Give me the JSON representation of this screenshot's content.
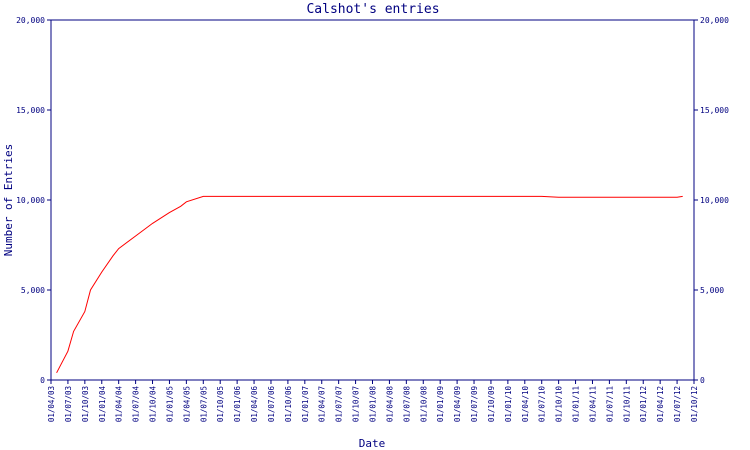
{
  "chart_data": {
    "type": "line",
    "title": "Calshot's entries",
    "xlabel": "Date",
    "ylabel": "Number of Entries",
    "ylim": [
      0,
      20000
    ],
    "y_ticks": [
      "0",
      "5,000",
      "10,000",
      "15,000",
      "20,000"
    ],
    "y_tick_values": [
      0,
      5000,
      10000,
      15000,
      20000
    ],
    "x_ticks": [
      "01/04/03",
      "01/07/03",
      "01/10/03",
      "01/01/04",
      "01/04/04",
      "01/07/04",
      "01/10/04",
      "01/01/05",
      "01/04/05",
      "01/07/05",
      "01/10/05",
      "01/01/06",
      "01/04/06",
      "01/07/06",
      "01/10/06",
      "01/01/07",
      "01/04/07",
      "01/07/07",
      "01/10/07",
      "01/01/08",
      "01/04/08",
      "01/07/08",
      "01/10/08",
      "01/01/09",
      "01/04/09",
      "01/07/09",
      "01/10/09",
      "01/01/10",
      "01/04/10",
      "01/07/10",
      "01/10/10",
      "01/01/11",
      "01/04/11",
      "01/07/11",
      "01/10/11",
      "01/01/12",
      "01/04/12",
      "01/07/12",
      "01/10/12"
    ],
    "xlim": [
      "01/04/03",
      "01/10/12"
    ],
    "grid": false,
    "series": [
      {
        "color": "#ff0000",
        "x": [
          "01/05/03",
          "01/07/03",
          "01/08/03",
          "01/10/03",
          "01/11/03",
          "01/01/04",
          "01/03/04",
          "01/04/04",
          "01/07/04",
          "01/10/04",
          "01/01/05",
          "01/03/05",
          "01/04/05",
          "01/07/05",
          "01/10/05",
          "01/01/06",
          "01/01/07",
          "01/01/08",
          "01/01/09",
          "01/01/10",
          "01/07/10",
          "01/10/10",
          "01/01/11",
          "01/01/12",
          "01/04/12",
          "01/07/12",
          "01/08/12"
        ],
        "y": [
          400,
          1600,
          2700,
          3800,
          5000,
          6000,
          6900,
          7300,
          8000,
          8700,
          9300,
          9650,
          9900,
          10200,
          10200,
          10200,
          10200,
          10200,
          10200,
          10200,
          10200,
          10150,
          10150,
          10150,
          10150,
          10150,
          10200
        ]
      }
    ]
  }
}
